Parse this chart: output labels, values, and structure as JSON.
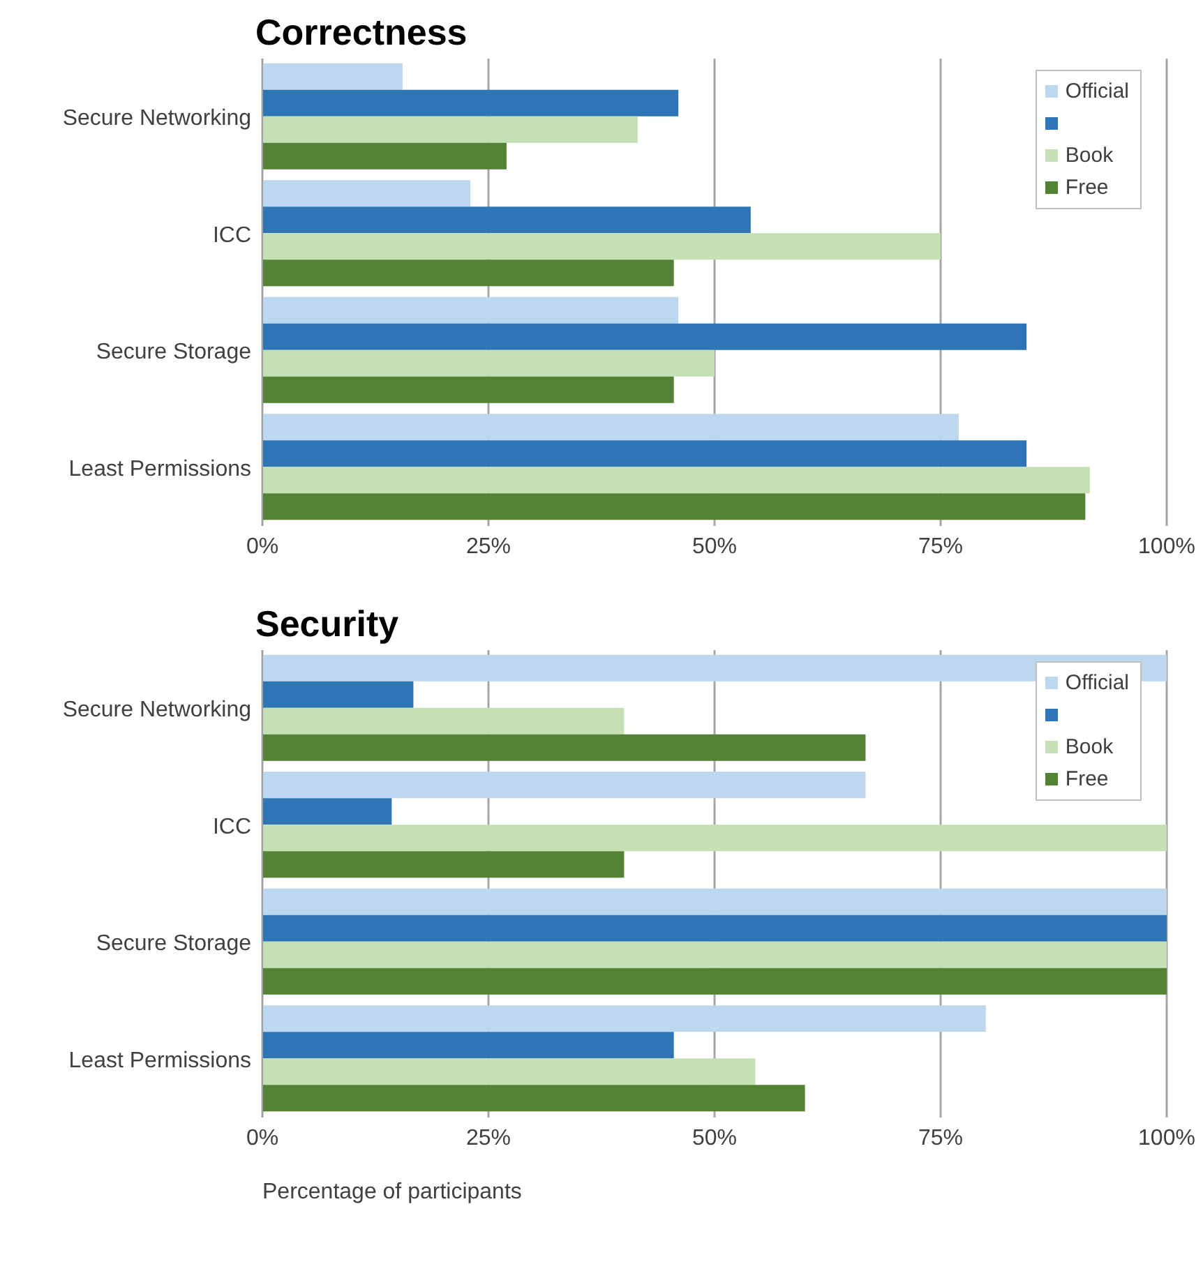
{
  "chart_data": [
    {
      "type": "bar",
      "orientation": "horizontal",
      "title": "Correctness",
      "categories": [
        "Secure Networking",
        "ICC",
        "Secure Storage",
        "Least Permissions"
      ],
      "series": [
        {
          "name": "Official",
          "color": "#bdd7ee",
          "values": [
            15.5,
            23,
            46,
            77
          ]
        },
        {
          "color": "#2e75b6",
          "values": [
            46,
            54,
            84.5,
            84.5
          ]
        },
        {
          "name": "Book",
          "color": "#c5e0b4",
          "values": [
            41.5,
            75,
            50,
            91.5
          ]
        },
        {
          "name": "Free",
          "color": "#548235",
          "values": [
            27,
            45.5,
            45.5,
            91
          ]
        }
      ],
      "xlim": [
        0,
        100
      ],
      "xticks": [
        {
          "value": 0,
          "label": "0%"
        },
        {
          "value": 25,
          "label": "25%"
        },
        {
          "value": 50,
          "label": "50%"
        },
        {
          "value": 75,
          "label": "75%"
        },
        {
          "value": 100,
          "label": "100%"
        }
      ],
      "grid": "x",
      "legend": "top right"
    },
    {
      "type": "bar",
      "orientation": "horizontal",
      "title": "Security",
      "xlabel": "Percentage of participants",
      "categories": [
        "Secure Networking",
        "ICC",
        "Secure Storage",
        "Least Permissions"
      ],
      "series": [
        {
          "name": "Official",
          "color": "#bdd7ee",
          "values": [
            100,
            66.7,
            100,
            80
          ]
        },
        {
          "color": "#2e75b6",
          "values": [
            16.7,
            14.3,
            100,
            45.5
          ]
        },
        {
          "name": "Book",
          "color": "#c5e0b4",
          "values": [
            40,
            100,
            100,
            54.5
          ]
        },
        {
          "name": "Free",
          "color": "#548235",
          "values": [
            66.7,
            40,
            100,
            60
          ]
        }
      ],
      "xlim": [
        0,
        100
      ],
      "xticks": [
        {
          "value": 0,
          "label": "0%"
        },
        {
          "value": 25,
          "label": "25%"
        },
        {
          "value": 50,
          "label": "50%"
        },
        {
          "value": 75,
          "label": "75%"
        },
        {
          "value": 100,
          "label": "100%"
        }
      ],
      "grid": "x",
      "legend": "top right"
    }
  ]
}
